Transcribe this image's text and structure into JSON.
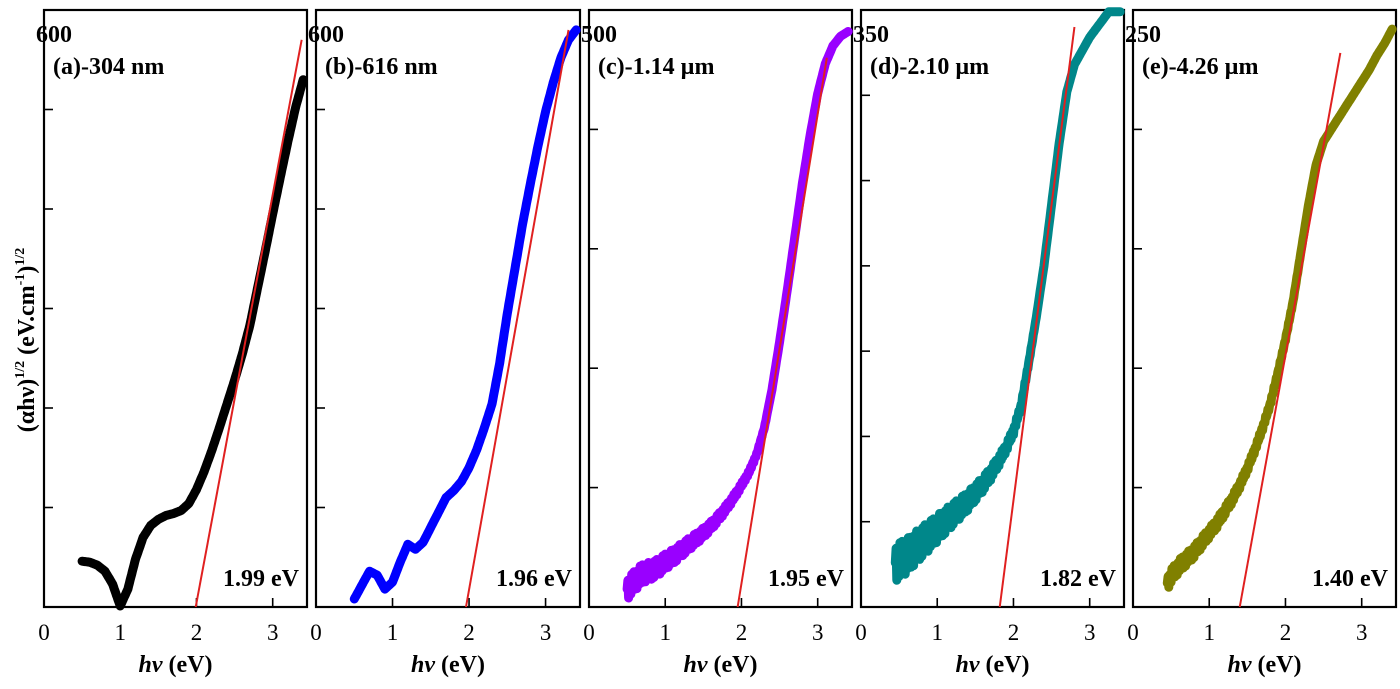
{
  "ylabel": {
    "base": "(αhν)",
    "sup1": "1/2",
    "mid": " (eV.cm",
    "sup2": "-1",
    "close": ")",
    "sup3": "1/2"
  },
  "xlabel": {
    "sym": "hν",
    "unit": " (eV)"
  },
  "colors": {
    "fit": "#e02020"
  },
  "chart_data": [
    {
      "type": "scatter",
      "title": "(a)-304 nm",
      "ymax_label": "600",
      "color": "#000000",
      "xlim": [
        0,
        3.45
      ],
      "ylim": [
        0,
        600
      ],
      "ytick_step": 100,
      "xticks": [
        0,
        1,
        2,
        3
      ],
      "gap_label": "1.99 eV",
      "fit": {
        "x": [
          1.99,
          3.38
        ],
        "y": [
          0,
          570
        ]
      },
      "curve": {
        "x": [
          0.5,
          0.6,
          0.7,
          0.8,
          0.9,
          1.0,
          1.1,
          1.2,
          1.3,
          1.4,
          1.5,
          1.6,
          1.7,
          1.8,
          1.9,
          2.0,
          2.1,
          2.2,
          2.3,
          2.4,
          2.5,
          2.6,
          2.7,
          2.8,
          2.9,
          3.0,
          3.1,
          3.2,
          3.3,
          3.4
        ],
        "y": [
          46,
          45,
          42,
          36,
          23,
          1,
          18,
          48,
          70,
          82,
          88,
          92,
          94,
          97,
          104,
          118,
          136,
          157,
          180,
          204,
          228,
          254,
          283,
          320,
          357,
          395,
          432,
          468,
          502,
          530
        ]
      },
      "noise": 0
    },
    {
      "type": "scatter",
      "title": "(b)-616 nm",
      "ymax_label": "600",
      "color": "#0000ff",
      "xlim": [
        0,
        3.45
      ],
      "ylim": [
        0,
        600
      ],
      "ytick_step": 100,
      "xticks": [
        0,
        1,
        2,
        3
      ],
      "gap_label": "1.96 eV",
      "fit": {
        "x": [
          1.96,
          3.3
        ],
        "y": [
          0,
          580
        ]
      },
      "curve": {
        "x": [
          0.5,
          0.6,
          0.7,
          0.8,
          0.9,
          1.0,
          1.1,
          1.2,
          1.3,
          1.4,
          1.5,
          1.6,
          1.7,
          1.8,
          1.9,
          2.0,
          2.1,
          2.2,
          2.3,
          2.4,
          2.5,
          2.6,
          2.7,
          2.8,
          2.9,
          3.0,
          3.1,
          3.2,
          3.3,
          3.4
        ],
        "y": [
          8,
          22,
          36,
          32,
          18,
          25,
          45,
          63,
          58,
          65,
          80,
          95,
          110,
          117,
          126,
          140,
          158,
          180,
          204,
          245,
          295,
          340,
          385,
          425,
          463,
          498,
          527,
          552,
          570,
          580
        ]
      },
      "noise": 0
    },
    {
      "type": "scatter",
      "title": "(c)-1.14 µm",
      "ymax_label": "500",
      "color": "#9900ff",
      "xlim": [
        0,
        3.45
      ],
      "ylim": [
        0,
        500
      ],
      "ytick_step": 100,
      "xticks": [
        0,
        1,
        2,
        3
      ],
      "gap_label": "1.95 eV",
      "fit": {
        "x": [
          1.95,
          3.12
        ],
        "y": [
          0,
          460
        ]
      },
      "curve": {
        "x": [
          0.5,
          0.6,
          0.7,
          0.8,
          0.9,
          1.0,
          1.1,
          1.2,
          1.3,
          1.4,
          1.5,
          1.6,
          1.7,
          1.8,
          1.9,
          2.0,
          2.1,
          2.2,
          2.3,
          2.4,
          2.5,
          2.6,
          2.7,
          2.8,
          2.9,
          3.0,
          3.1,
          3.2,
          3.3,
          3.4
        ],
        "y": [
          15,
          22,
          28,
          30,
          33,
          38,
          42,
          47,
          52,
          57,
          62,
          68,
          75,
          83,
          92,
          102,
          113,
          128,
          150,
          182,
          222,
          265,
          310,
          355,
          395,
          430,
          455,
          470,
          478,
          482
        ]
      },
      "noise": 9
    },
    {
      "type": "scatter",
      "title": "(d)-2.10 µm",
      "ymax_label": "350",
      "color": "#00878a",
      "xlim": [
        0,
        3.45
      ],
      "ylim": [
        0,
        350
      ],
      "ytick_step": 50,
      "xticks": [
        0,
        1,
        2,
        3
      ],
      "gap_label": "1.82 eV",
      "fit": {
        "x": [
          1.82,
          2.8
        ],
        "y": [
          0,
          340
        ]
      },
      "curve": {
        "x": [
          0.45,
          0.6,
          0.7,
          0.8,
          0.9,
          1.0,
          1.1,
          1.2,
          1.3,
          1.4,
          1.5,
          1.6,
          1.7,
          1.8,
          1.9,
          2.0,
          2.1,
          2.2,
          2.3,
          2.4,
          2.5,
          2.6,
          2.7,
          2.8,
          2.9,
          3.0,
          3.1,
          3.2,
          3.3,
          3.4
        ],
        "y": [
          26,
          30,
          34,
          38,
          42,
          46,
          50,
          54,
          58,
          62,
          67,
          72,
          78,
          85,
          93,
          103,
          118,
          143,
          170,
          200,
          236,
          272,
          302,
          318,
          326,
          334,
          340,
          346,
          352,
          358
        ]
      },
      "noise": 11
    },
    {
      "type": "scatter",
      "title": "(e)-4.26 µm",
      "ymax_label": "250",
      "color": "#808000",
      "xlim": [
        0,
        3.45
      ],
      "ylim": [
        0,
        250
      ],
      "ytick_step": 50,
      "xticks": [
        0,
        1,
        2,
        3
      ],
      "gap_label": "1.40 eV",
      "fit": {
        "x": [
          1.4,
          2.72
        ],
        "y": [
          0,
          232
        ]
      },
      "curve": {
        "x": [
          0.45,
          0.5,
          0.6,
          0.7,
          0.8,
          0.9,
          1.0,
          1.1,
          1.2,
          1.3,
          1.4,
          1.5,
          1.6,
          1.7,
          1.8,
          1.9,
          2.0,
          2.1,
          2.2,
          2.3,
          2.4,
          2.5,
          2.6,
          2.7,
          2.8,
          2.9,
          3.0,
          3.1,
          3.2,
          3.3,
          3.4
        ],
        "y": [
          10,
          13,
          17,
          20,
          23,
          27,
          31,
          35,
          40,
          45,
          51,
          58,
          66,
          75,
          85,
          98,
          112,
          128,
          148,
          168,
          185,
          195,
          200,
          205,
          210,
          215,
          220,
          225,
          231,
          236,
          242
        ]
      },
      "noise": 3
    }
  ]
}
